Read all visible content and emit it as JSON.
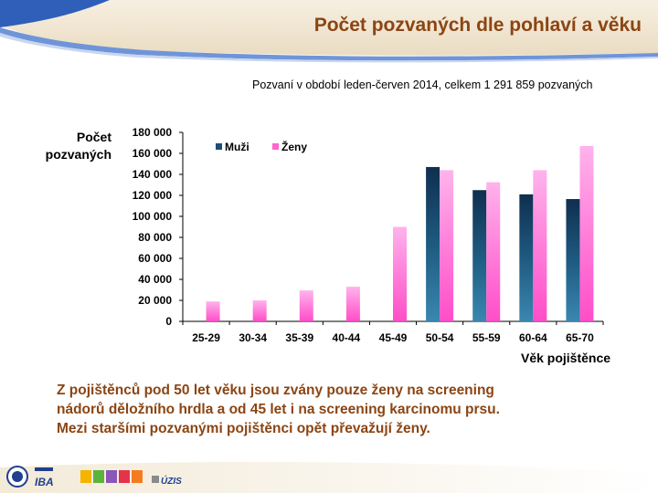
{
  "header": {
    "title": "Počet pozvaných dle pohlaví a věku",
    "subtitle": "Pozvaní v období leden-červen 2014, celkem 1 291 859 pozvaných"
  },
  "chart_data": {
    "type": "bar",
    "categories": [
      "25-29",
      "30-34",
      "35-39",
      "40-44",
      "45-49",
      "50-54",
      "55-59",
      "60-64",
      "65-70"
    ],
    "series": [
      {
        "name": "Muži",
        "values": [
          0,
          0,
          0,
          0,
          0,
          147000,
          125000,
          121000,
          116500
        ],
        "color": "#1f4e79"
      },
      {
        "name": "Ženy",
        "values": [
          19000,
          20000,
          29500,
          33000,
          90000,
          144000,
          132500,
          144000,
          167000
        ],
        "color": "#ff66cc"
      }
    ],
    "ylabel_lines": [
      "Počet",
      "pozvaných"
    ],
    "xlabel": "Věk pojištěnce",
    "ylim": [
      0,
      180000
    ],
    "yticks": [
      "0",
      "20 000",
      "40 000",
      "60 000",
      "80 000",
      "100 000",
      "120 000",
      "140 000",
      "160 000",
      "180 000"
    ],
    "legend_position": "top-left",
    "grid": false
  },
  "body_text": [
    "Z pojištěnců pod 50 let věku jsou zvány pouze ženy na screening",
    "nádorů děložního hrdla a od 45 let i na screening karcinomu prsu.",
    "Mezi staršími pozvanými pojištěnci opět převažují ženy."
  ],
  "footer": {
    "logo_iba": "IBA",
    "logo_uzis": "ÚZIS"
  }
}
